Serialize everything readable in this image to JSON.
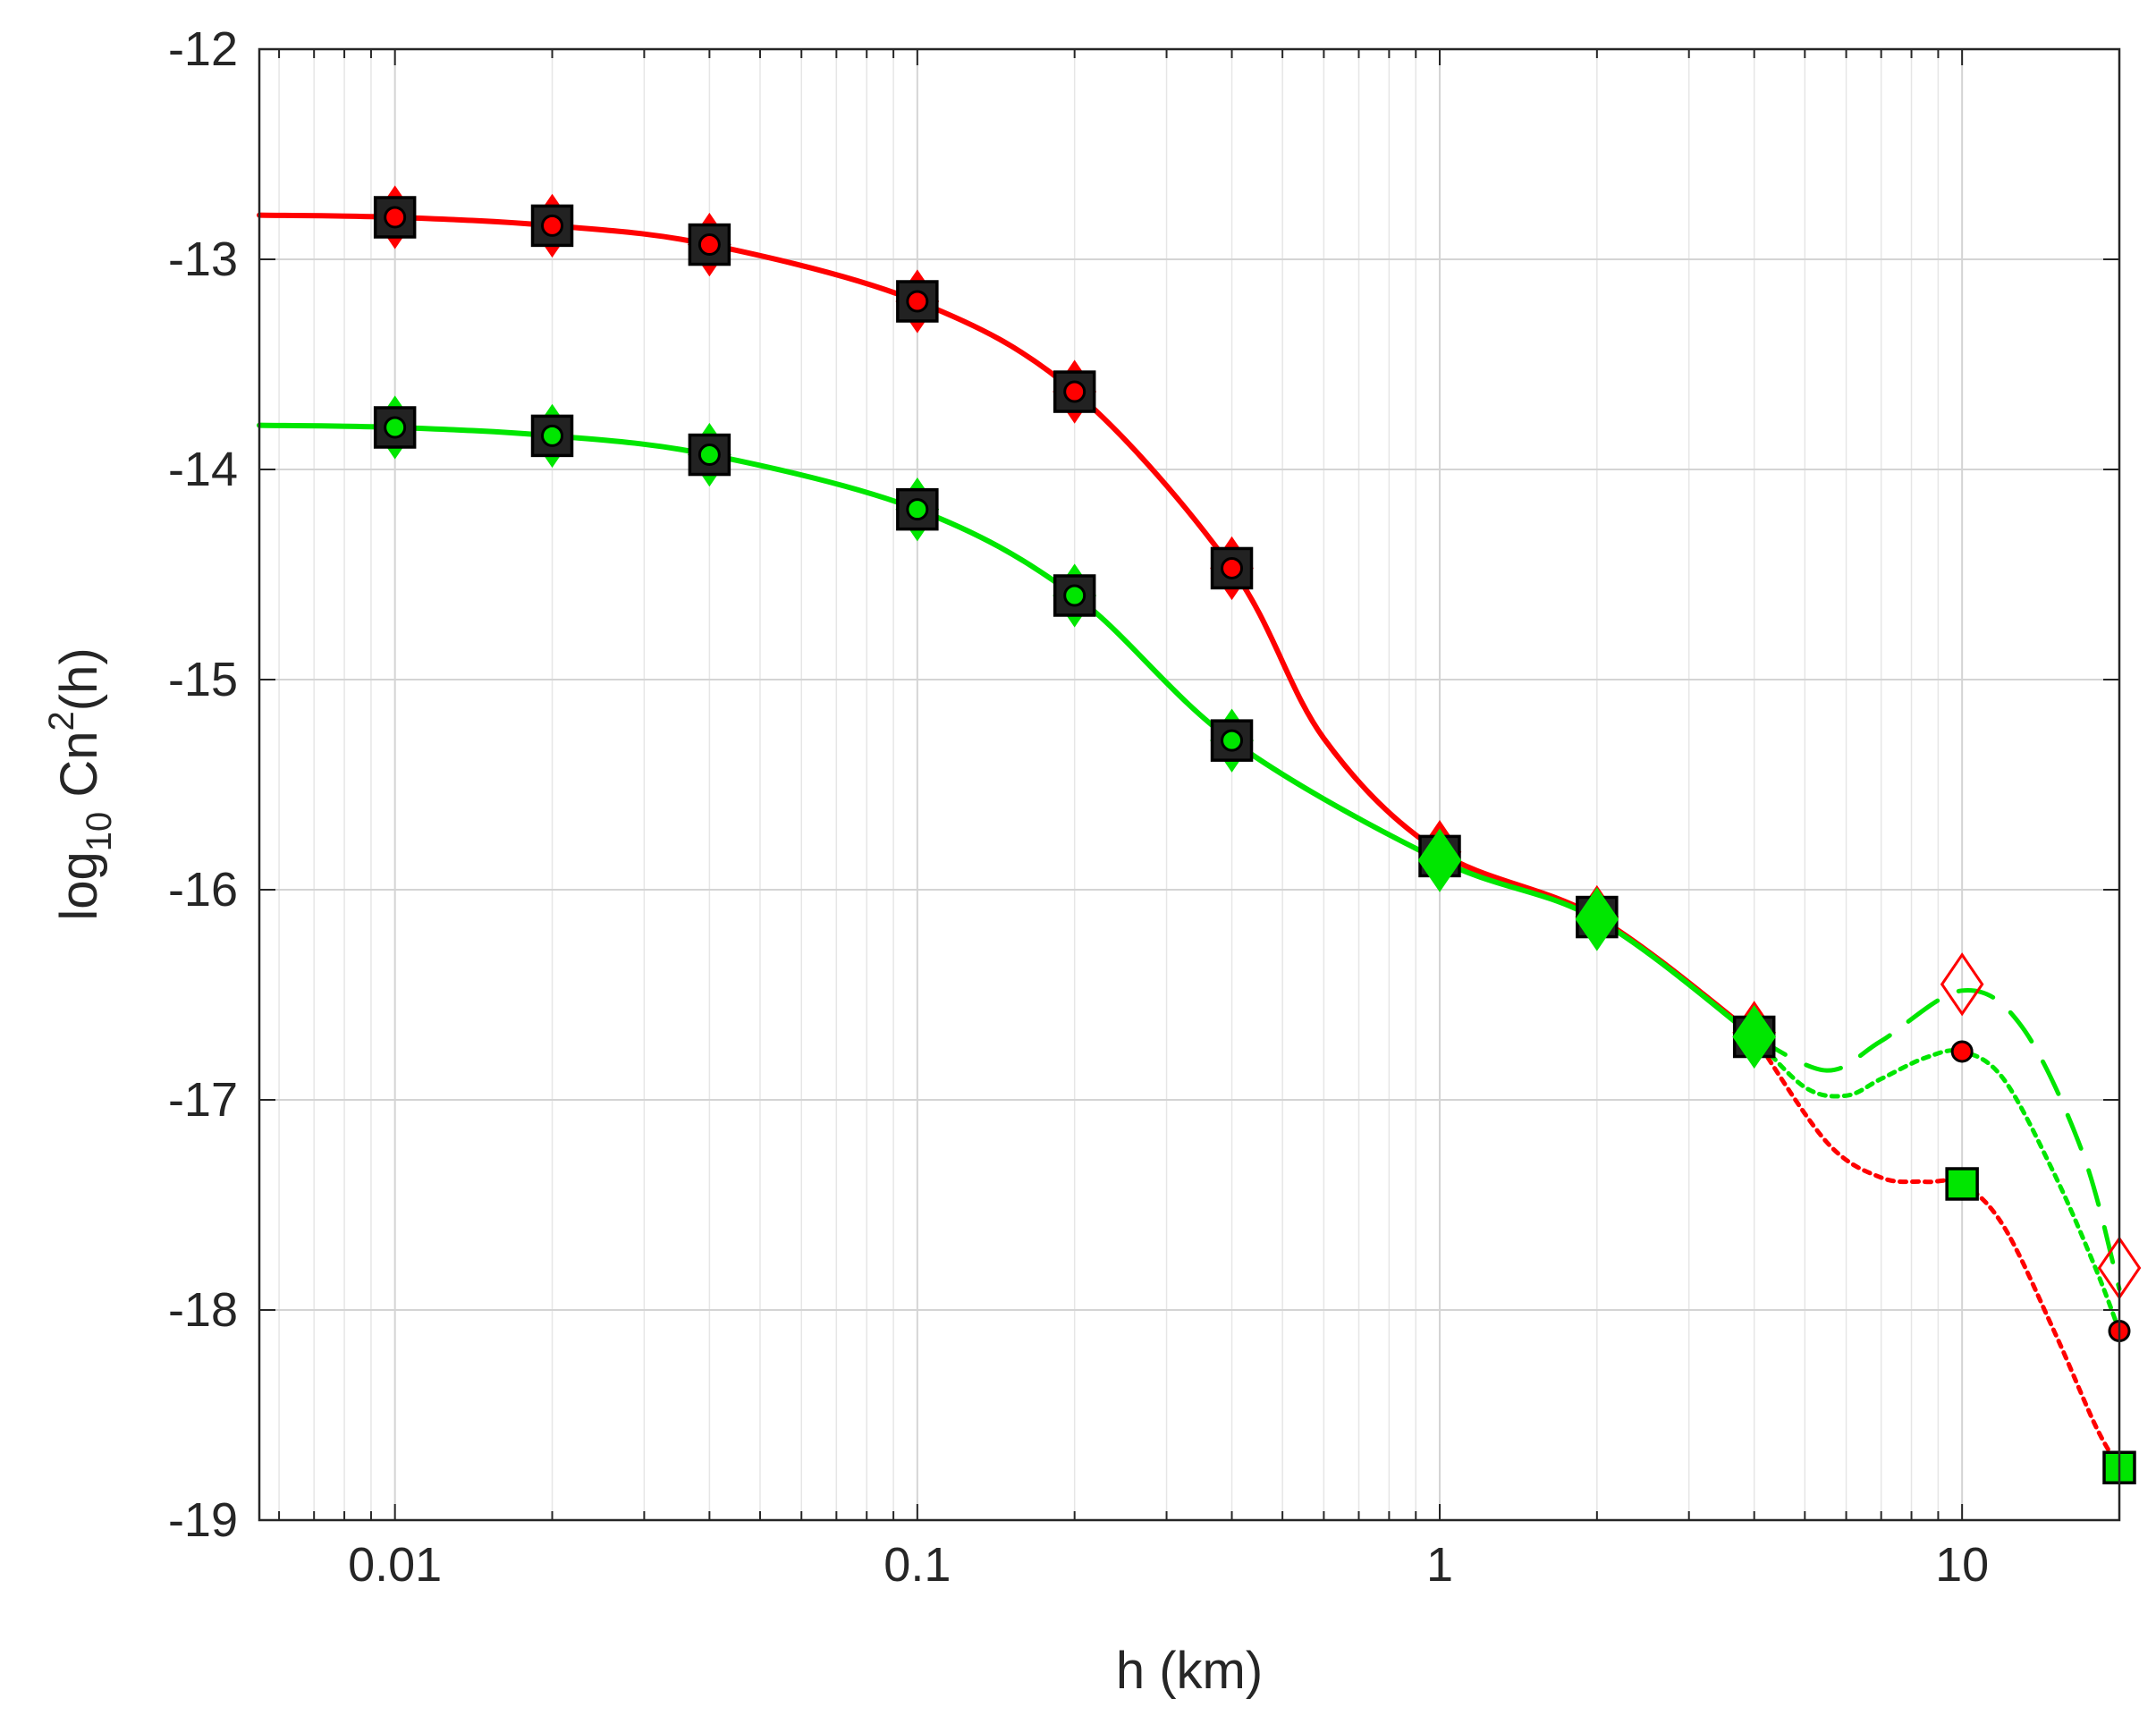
{
  "chart_data": {
    "type": "line",
    "xlabel": "h (km)",
    "ylabel": {
      "base": "log",
      "sub": "10",
      "mid": " Cn",
      "sup": "2",
      "tail": "(h)"
    },
    "xscale": "log",
    "xlim": [
      0.0055,
      20
    ],
    "ylim": [
      -19,
      -12
    ],
    "grid": true,
    "x_tick_values": [
      0.01,
      0.1,
      1,
      10
    ],
    "x_tick_labels": [
      "0.01",
      "0.1",
      "1",
      "10"
    ],
    "y_ticks": [
      -12,
      -13,
      -14,
      -15,
      -16,
      -17,
      -18,
      -19
    ],
    "y_tick_labels": [
      "-12",
      "-13",
      "-14",
      "-15",
      "-16",
      "-17",
      "-18",
      "-19"
    ],
    "colors": {
      "red": "#ff0000",
      "green": "#00e600",
      "text": "#262626",
      "grid": "#dcdcdc",
      "axis": "#262626"
    },
    "series": [
      {
        "color": "#ff0000",
        "style": "solid",
        "x": [
          0.0055,
          0.01,
          0.02,
          0.04,
          0.1,
          0.2,
          0.4,
          0.6,
          1,
          2,
          4
        ],
        "y": [
          -12.79,
          -12.8,
          -12.84,
          -12.93,
          -13.2,
          -13.63,
          -14.47,
          -15.28,
          -15.82,
          -16.13,
          -16.69
        ]
      },
      {
        "color": "#00e600",
        "style": "solid",
        "x": [
          0.0055,
          0.01,
          0.02,
          0.04,
          0.1,
          0.2,
          0.4,
          1,
          2,
          4
        ],
        "y": [
          -13.79,
          -13.8,
          -13.84,
          -13.93,
          -14.19,
          -14.6,
          -15.29,
          -15.86,
          -16.14,
          -16.7
        ]
      },
      {
        "color": "#00e600",
        "style": "dashed",
        "x": [
          4,
          5.5,
          7,
          10,
          13,
          17,
          20
        ],
        "y": [
          -16.7,
          -16.86,
          -16.72,
          -16.48,
          -16.65,
          -17.25,
          -17.9
        ]
      },
      {
        "color": "#00e600",
        "style": "dotted",
        "x": [
          4,
          5,
          6,
          7,
          8.5,
          10,
          12,
          15,
          18,
          20
        ],
        "y": [
          -16.7,
          -16.94,
          -16.98,
          -16.9,
          -16.8,
          -16.77,
          -16.9,
          -17.35,
          -17.8,
          -18.1
        ]
      },
      {
        "color": "#ff0000",
        "style": "dotted",
        "x": [
          4,
          5.5,
          7,
          8.5,
          10,
          12,
          15,
          18,
          20
        ],
        "y": [
          -16.7,
          -17.2,
          -17.37,
          -17.39,
          -17.4,
          -17.6,
          -18.1,
          -18.55,
          -18.75
        ]
      }
    ],
    "markers": [
      {
        "shape": "diamond",
        "stroke": "#ff0000",
        "fill": "#ff0000",
        "size": 30,
        "x": [
          0.01,
          0.02,
          0.04,
          0.1,
          0.2,
          0.4,
          1,
          2,
          4
        ],
        "y": [
          -12.8,
          -12.84,
          -12.93,
          -13.2,
          -13.63,
          -14.47,
          -15.82,
          -16.13,
          -16.68
        ]
      },
      {
        "shape": "square",
        "stroke": "#000000",
        "fill": "#222222",
        "size": 22,
        "x": [
          0.01,
          0.02,
          0.04,
          0.1,
          0.2,
          0.4,
          1,
          2,
          4
        ],
        "y": [
          -12.8,
          -12.84,
          -12.93,
          -13.2,
          -13.63,
          -14.47,
          -15.84,
          -16.13,
          -16.7
        ]
      },
      {
        "shape": "circle",
        "stroke": "#000000",
        "fill": "#ff0000",
        "size": 11,
        "x": [
          0.01,
          0.02,
          0.04,
          0.1,
          0.2,
          0.4,
          1,
          2,
          4
        ],
        "y": [
          -12.8,
          -12.84,
          -12.93,
          -13.2,
          -13.63,
          -14.47,
          -15.83,
          -16.13,
          -16.7
        ]
      },
      {
        "shape": "diamond",
        "stroke": "#00e600",
        "fill": "#00e600",
        "size": 30,
        "x": [
          0.01,
          0.02,
          0.04,
          0.1,
          0.2,
          0.4,
          1,
          2,
          4
        ],
        "y": [
          -13.8,
          -13.84,
          -13.93,
          -14.19,
          -14.6,
          -15.29,
          -15.86,
          -16.14,
          -16.7
        ]
      },
      {
        "shape": "square",
        "stroke": "#000000",
        "fill": "#222222",
        "size": 22,
        "x": [
          0.01,
          0.02,
          0.04,
          0.1,
          0.2,
          0.4
        ],
        "y": [
          -13.8,
          -13.84,
          -13.93,
          -14.19,
          -14.6,
          -15.29
        ]
      },
      {
        "shape": "circle",
        "stroke": "#000000",
        "fill": "#00e600",
        "size": 11,
        "x": [
          0.01,
          0.02,
          0.04,
          0.1,
          0.2,
          0.4
        ],
        "y": [
          -13.8,
          -13.84,
          -13.93,
          -14.19,
          -14.6,
          -15.29
        ]
      },
      {
        "shape": "diamond",
        "stroke": "#ff0000",
        "fill": "none",
        "size": 30,
        "x": [
          10,
          20
        ],
        "y": [
          -16.45,
          -17.8
        ]
      },
      {
        "shape": "circle",
        "stroke": "#000000",
        "fill": "#ff0000",
        "size": 11,
        "x": [
          10,
          20
        ],
        "y": [
          -16.77,
          -18.1
        ]
      },
      {
        "shape": "square",
        "stroke": "#000000",
        "fill": "#00e600",
        "size": 17,
        "x": [
          10,
          20
        ],
        "y": [
          -17.4,
          -18.75
        ]
      }
    ]
  }
}
